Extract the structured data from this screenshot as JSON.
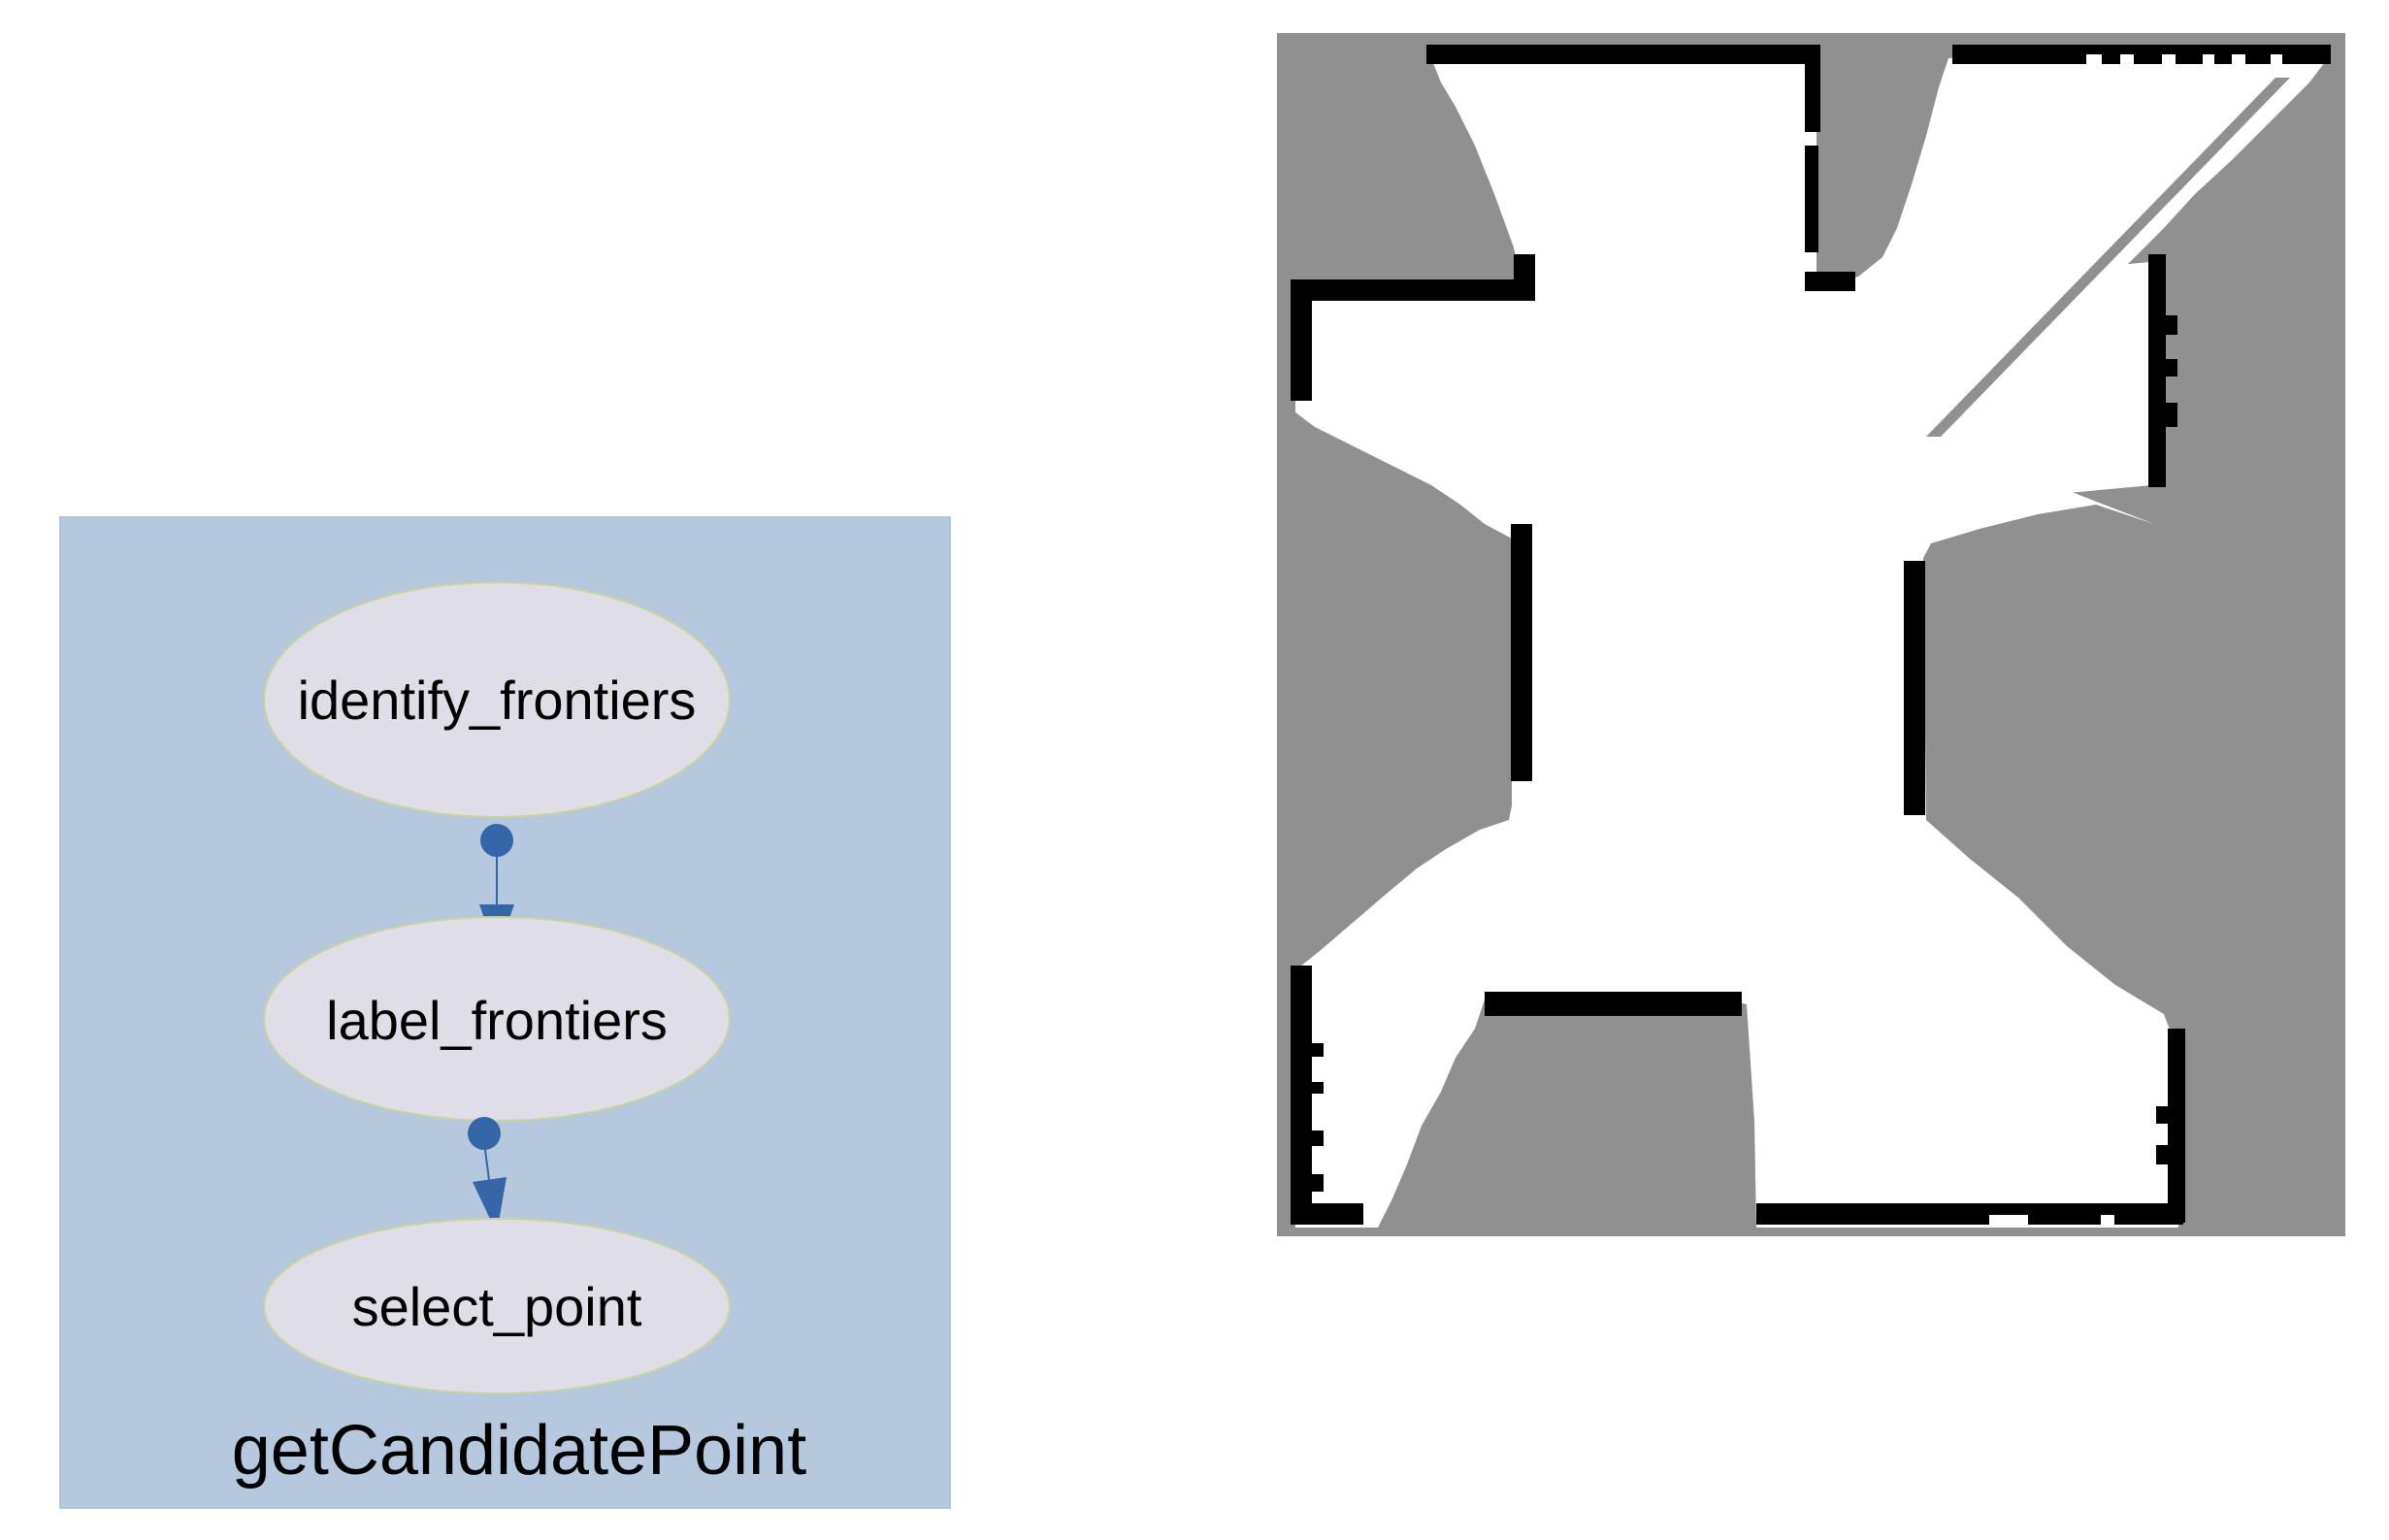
{
  "colors": {
    "cluster_fill": "#b5c8de",
    "node_fill": "#dfdde6",
    "node_stroke": "#c8d3a0",
    "edge_color": "#3566a8",
    "map_unknown": "#909090",
    "map_free": "#ffffff",
    "map_wall": "#000000"
  },
  "cluster": {
    "label": "getCandidatePoint"
  },
  "nodes": [
    {
      "id": "identify_frontiers",
      "label": "identify_frontiers"
    },
    {
      "id": "label_frontiers",
      "label": "label_frontiers"
    },
    {
      "id": "select_point",
      "label": "select_point"
    }
  ],
  "edges": [
    {
      "from": "identify_frontiers",
      "to": "label_frontiers"
    },
    {
      "from": "label_frontiers",
      "to": "select_point"
    }
  ],
  "occupancy_map": {
    "legend": [
      "unknown: gray",
      "free: white",
      "occupied: black"
    ]
  }
}
